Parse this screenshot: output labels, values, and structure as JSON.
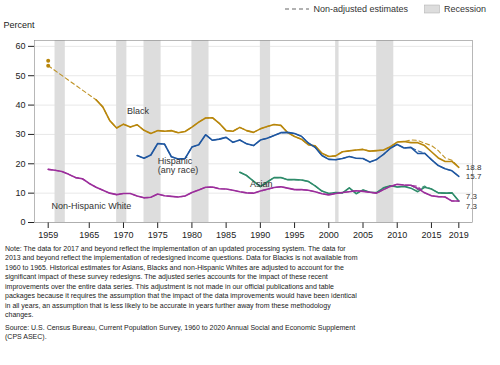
{
  "chart_data": {
    "type": "line",
    "y_label": "Percent",
    "xlim": [
      1957,
      2021
    ],
    "xticks": [
      1959,
      1965,
      1970,
      1975,
      1980,
      1985,
      1990,
      1995,
      2000,
      2005,
      2010,
      2015,
      2019
    ],
    "ylim": [
      0,
      62
    ],
    "yticks": [
      0,
      10,
      20,
      30,
      40,
      50,
      60
    ],
    "grid": true,
    "legend": "top",
    "nonadjusted": {
      "name": "Non-adjusted estimates",
      "color": "#999999",
      "line_style": "dashed"
    },
    "recession": {
      "name": "Recession",
      "color": "#DDDDDD",
      "periods": [
        [
          1960,
          1961.5
        ],
        [
          1969,
          1970.5
        ],
        [
          1973,
          1975.5
        ],
        [
          1980,
          1982.5
        ],
        [
          1990,
          1991.5
        ],
        [
          2001,
          2001.5
        ],
        [
          2007,
          2009.5
        ]
      ]
    },
    "series": [
      {
        "name": "Black",
        "color": "#B8860B",
        "end_label": "18.8",
        "x": [
          1966,
          1967,
          1968,
          1969,
          1970,
          1971,
          1972,
          1973,
          1974,
          1975,
          1976,
          1977,
          1978,
          1979,
          1980,
          1981,
          1982,
          1983,
          1984,
          1985,
          1986,
          1987,
          1988,
          1989,
          1990,
          1991,
          1992,
          1993,
          1994,
          1995,
          1996,
          1997,
          1998,
          1999,
          2000,
          2001,
          2002,
          2003,
          2004,
          2005,
          2006,
          2007,
          2008,
          2009,
          2010,
          2011,
          2012,
          2013,
          2014,
          2015,
          2016,
          2017,
          2018,
          2019
        ],
        "values": [
          41.8,
          39.3,
          34.7,
          32.2,
          33.5,
          32.5,
          33.3,
          31.4,
          30.3,
          31.3,
          31.1,
          31.3,
          30.6,
          31.0,
          32.5,
          34.2,
          35.6,
          35.7,
          33.8,
          31.3,
          31.1,
          32.4,
          31.3,
          30.7,
          31.9,
          32.7,
          33.4,
          33.1,
          30.6,
          29.3,
          28.4,
          26.5,
          26.1,
          23.6,
          22.5,
          22.7,
          24.1,
          24.4,
          24.7,
          24.9,
          24.3,
          24.5,
          24.7,
          25.8,
          27.4,
          27.6,
          27.2,
          27.2,
          26.2,
          24.1,
          22.0,
          20.8,
          20.8,
          18.8
        ],
        "nonadjusted_values": [
          41.8,
          39.3,
          34.7,
          32.2,
          33.5,
          32.5,
          33.3,
          31.4,
          30.3,
          31.3,
          31.1,
          31.3,
          30.6,
          31.0,
          32.5,
          34.2,
          35.6,
          35.7,
          33.8,
          31.3,
          31.1,
          32.4,
          31.3,
          30.7,
          31.9,
          32.7,
          33.4,
          33.1,
          30.6,
          29.3,
          28.4,
          26.5,
          26.1,
          23.6,
          22.5,
          22.7,
          24.1,
          24.4,
          24.7,
          24.9,
          24.3,
          24.5,
          24.7,
          25.8,
          27.4,
          27.6,
          28.1,
          28.0,
          27.0,
          26.2,
          24.5,
          22.0,
          21.2,
          18.8
        ],
        "points_x": [
          1959,
          1959
        ],
        "points_values": [
          55.1,
          53.4
        ],
        "connect_x": [
          1959,
          1966
        ],
        "connect_values": [
          53.4,
          41.8
        ]
      },
      {
        "name": "Hispanic\n(any race)",
        "color": "#1E56A0",
        "end_label": "15.7",
        "x": [
          1972,
          1973,
          1974,
          1975,
          1976,
          1977,
          1978,
          1979,
          1980,
          1981,
          1982,
          1983,
          1984,
          1985,
          1986,
          1987,
          1988,
          1989,
          1990,
          1991,
          1992,
          1993,
          1994,
          1995,
          1996,
          1997,
          1998,
          1999,
          2000,
          2001,
          2002,
          2003,
          2004,
          2005,
          2006,
          2007,
          2008,
          2009,
          2010,
          2011,
          2012,
          2013,
          2014,
          2015,
          2016,
          2017,
          2018,
          2019
        ],
        "values": [
          22.8,
          21.9,
          23.0,
          26.9,
          26.7,
          22.4,
          21.6,
          21.8,
          25.7,
          26.5,
          29.9,
          28.0,
          28.4,
          29.0,
          27.3,
          28.1,
          26.8,
          26.2,
          28.1,
          28.7,
          29.6,
          30.6,
          30.7,
          30.3,
          29.4,
          27.1,
          25.6,
          22.8,
          21.5,
          21.4,
          21.8,
          22.5,
          21.9,
          21.8,
          20.6,
          21.5,
          23.2,
          25.3,
          26.6,
          25.4,
          25.6,
          23.5,
          23.6,
          21.4,
          19.4,
          18.3,
          17.6,
          15.7
        ],
        "nonadjusted_values": [
          22.8,
          21.9,
          23.0,
          26.9,
          26.7,
          22.4,
          21.6,
          21.8,
          25.7,
          26.5,
          29.9,
          28.0,
          28.4,
          29.0,
          27.3,
          28.1,
          26.8,
          26.2,
          28.1,
          28.7,
          29.6,
          30.6,
          30.7,
          30.3,
          29.4,
          27.1,
          25.6,
          22.8,
          21.5,
          21.4,
          21.8,
          22.5,
          21.9,
          21.8,
          20.6,
          21.5,
          23.2,
          25.3,
          26.6,
          25.4,
          25.6,
          24.4,
          23.7,
          21.4,
          19.4,
          18.3,
          17.6,
          15.7
        ]
      },
      {
        "name": "Asian",
        "color": "#2E8B6A",
        "end_label": "7.3",
        "x": [
          1987,
          1988,
          1989,
          1990,
          1991,
          1992,
          1993,
          1994,
          1995,
          1996,
          1997,
          1998,
          1999,
          2000,
          2001,
          2002,
          2003,
          2004,
          2005,
          2006,
          2007,
          2008,
          2009,
          2010,
          2011,
          2012,
          2013,
          2014,
          2015,
          2016,
          2017,
          2018,
          2019
        ],
        "values": [
          17.1,
          16.0,
          14.1,
          12.2,
          13.8,
          15.3,
          15.3,
          14.6,
          14.6,
          14.5,
          14.0,
          12.5,
          10.7,
          9.9,
          10.2,
          10.1,
          11.8,
          9.8,
          11.1,
          10.3,
          10.2,
          11.8,
          12.5,
          12.1,
          12.3,
          11.7,
          10.5,
          12.0,
          11.4,
          10.1,
          10.0,
          10.1,
          7.3
        ],
        "nonadjusted_values": [
          17.1,
          16.0,
          14.1,
          12.2,
          13.8,
          15.3,
          15.3,
          14.6,
          14.6,
          14.5,
          14.0,
          12.5,
          10.7,
          9.9,
          10.2,
          10.1,
          11.8,
          9.8,
          11.1,
          10.3,
          10.2,
          11.8,
          12.5,
          12.1,
          12.3,
          12.7,
          11.2,
          12.4,
          11.4,
          10.1,
          10.0,
          10.1,
          7.3
        ]
      },
      {
        "name": "Non-Hispanic White",
        "color": "#9B2D9B",
        "end_label": "7.3",
        "x": [
          1959,
          1960,
          1961,
          1962,
          1963,
          1964,
          1965,
          1966,
          1967,
          1968,
          1969,
          1970,
          1971,
          1972,
          1973,
          1974,
          1975,
          1976,
          1977,
          1978,
          1979,
          1980,
          1981,
          1982,
          1983,
          1984,
          1985,
          1986,
          1987,
          1988,
          1989,
          1990,
          1991,
          1992,
          1993,
          1994,
          1995,
          1996,
          1997,
          1998,
          1999,
          2000,
          2001,
          2002,
          2003,
          2004,
          2005,
          2006,
          2007,
          2008,
          2009,
          2010,
          2011,
          2012,
          2013,
          2014,
          2015,
          2016,
          2017,
          2018,
          2019
        ],
        "values": [
          18.1,
          17.8,
          17.4,
          16.4,
          15.3,
          14.9,
          13.3,
          12.0,
          11.0,
          10.0,
          9.5,
          9.9,
          9.9,
          9.0,
          8.4,
          8.6,
          9.7,
          9.1,
          8.9,
          8.7,
          9.0,
          10.2,
          11.1,
          12.0,
          12.1,
          11.5,
          11.4,
          11.0,
          10.5,
          10.1,
          10.0,
          10.7,
          11.3,
          11.9,
          12.2,
          11.7,
          11.2,
          11.2,
          11.0,
          10.5,
          9.8,
          9.4,
          9.9,
          10.2,
          10.5,
          10.8,
          10.6,
          10.3,
          10.0,
          11.2,
          12.3,
          13.0,
          12.8,
          12.7,
          11.6,
          10.1,
          9.1,
          8.8,
          8.7,
          7.3,
          7.3
        ],
        "nonadjusted_values": [
          18.1,
          17.8,
          17.4,
          16.4,
          15.3,
          14.9,
          13.3,
          12.0,
          11.0,
          10.0,
          9.5,
          9.9,
          9.9,
          9.0,
          8.4,
          8.6,
          9.7,
          9.1,
          8.9,
          8.7,
          9.0,
          10.2,
          11.1,
          12.0,
          12.1,
          11.5,
          11.4,
          11.0,
          10.5,
          10.1,
          10.0,
          10.7,
          11.3,
          11.9,
          12.2,
          11.7,
          11.2,
          11.2,
          11.0,
          10.5,
          9.8,
          9.4,
          9.9,
          10.2,
          10.5,
          10.8,
          10.6,
          10.3,
          10.0,
          11.2,
          12.3,
          13.0,
          12.8,
          12.7,
          12.3,
          10.1,
          9.1,
          8.8,
          8.7,
          7.3,
          7.3
        ]
      }
    ],
    "note": "Note: The data for 2017 and beyond reflect the implementation of an updated processing system. The data for\n2013 and beyond reflect the implementation of redesigned income questions. Data for Blacks is not available from\n1960 to 1965. Historical estimates for Asians, Blacks and non-Hispanic Whites are adjusted to account for the\nsignificant impact of these survey redesigns. The adjusted series accounts for the impact of these recent\nimprovements over the entire data series. This adjustment is not made in our official publications and table\npackages because it requires the assumption that the impact of the data improvements would have been identical\nin all years, an assumption that is less likely to be accurate in years further away from these methodology\nchanges.",
    "source": "Source: U.S. Census Bureau, Current Population Survey, 1960 to 2020 Annual Social and Economic Supplement\n(CPS ASEC)."
  }
}
